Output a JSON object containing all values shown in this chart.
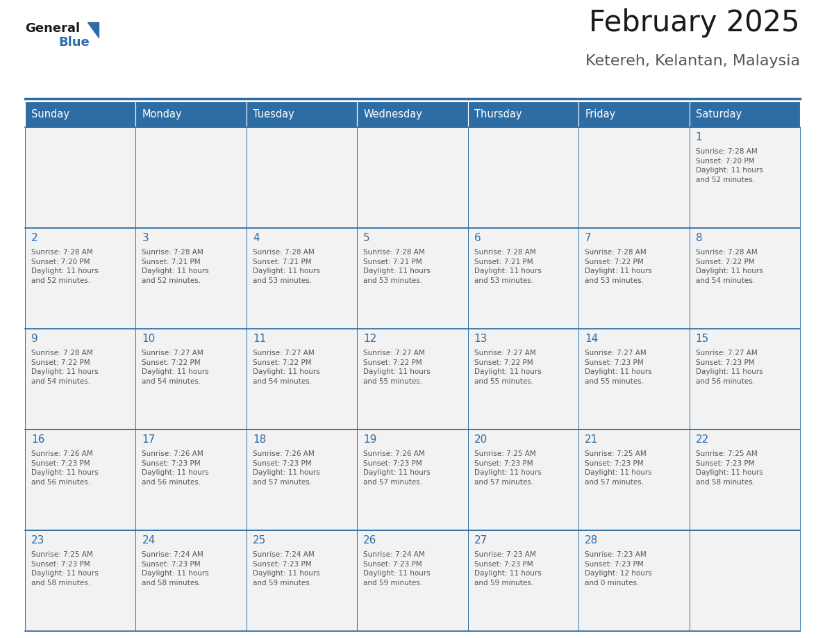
{
  "title": "February 2025",
  "subtitle": "Ketereh, Kelantan, Malaysia",
  "header_bg": "#2E6DA4",
  "header_text_color": "#FFFFFF",
  "cell_bg": "#F2F2F2",
  "day_number_color": "#2E6DA4",
  "info_text_color": "#555555",
  "border_color": "#2E6DA4",
  "days_of_week": [
    "Sunday",
    "Monday",
    "Tuesday",
    "Wednesday",
    "Thursday",
    "Friday",
    "Saturday"
  ],
  "weeks": [
    [
      {
        "day": null,
        "info": null
      },
      {
        "day": null,
        "info": null
      },
      {
        "day": null,
        "info": null
      },
      {
        "day": null,
        "info": null
      },
      {
        "day": null,
        "info": null
      },
      {
        "day": null,
        "info": null
      },
      {
        "day": 1,
        "info": "Sunrise: 7:28 AM\nSunset: 7:20 PM\nDaylight: 11 hours\nand 52 minutes."
      }
    ],
    [
      {
        "day": 2,
        "info": "Sunrise: 7:28 AM\nSunset: 7:20 PM\nDaylight: 11 hours\nand 52 minutes."
      },
      {
        "day": 3,
        "info": "Sunrise: 7:28 AM\nSunset: 7:21 PM\nDaylight: 11 hours\nand 52 minutes."
      },
      {
        "day": 4,
        "info": "Sunrise: 7:28 AM\nSunset: 7:21 PM\nDaylight: 11 hours\nand 53 minutes."
      },
      {
        "day": 5,
        "info": "Sunrise: 7:28 AM\nSunset: 7:21 PM\nDaylight: 11 hours\nand 53 minutes."
      },
      {
        "day": 6,
        "info": "Sunrise: 7:28 AM\nSunset: 7:21 PM\nDaylight: 11 hours\nand 53 minutes."
      },
      {
        "day": 7,
        "info": "Sunrise: 7:28 AM\nSunset: 7:22 PM\nDaylight: 11 hours\nand 53 minutes."
      },
      {
        "day": 8,
        "info": "Sunrise: 7:28 AM\nSunset: 7:22 PM\nDaylight: 11 hours\nand 54 minutes."
      }
    ],
    [
      {
        "day": 9,
        "info": "Sunrise: 7:28 AM\nSunset: 7:22 PM\nDaylight: 11 hours\nand 54 minutes."
      },
      {
        "day": 10,
        "info": "Sunrise: 7:27 AM\nSunset: 7:22 PM\nDaylight: 11 hours\nand 54 minutes."
      },
      {
        "day": 11,
        "info": "Sunrise: 7:27 AM\nSunset: 7:22 PM\nDaylight: 11 hours\nand 54 minutes."
      },
      {
        "day": 12,
        "info": "Sunrise: 7:27 AM\nSunset: 7:22 PM\nDaylight: 11 hours\nand 55 minutes."
      },
      {
        "day": 13,
        "info": "Sunrise: 7:27 AM\nSunset: 7:22 PM\nDaylight: 11 hours\nand 55 minutes."
      },
      {
        "day": 14,
        "info": "Sunrise: 7:27 AM\nSunset: 7:23 PM\nDaylight: 11 hours\nand 55 minutes."
      },
      {
        "day": 15,
        "info": "Sunrise: 7:27 AM\nSunset: 7:23 PM\nDaylight: 11 hours\nand 56 minutes."
      }
    ],
    [
      {
        "day": 16,
        "info": "Sunrise: 7:26 AM\nSunset: 7:23 PM\nDaylight: 11 hours\nand 56 minutes."
      },
      {
        "day": 17,
        "info": "Sunrise: 7:26 AM\nSunset: 7:23 PM\nDaylight: 11 hours\nand 56 minutes."
      },
      {
        "day": 18,
        "info": "Sunrise: 7:26 AM\nSunset: 7:23 PM\nDaylight: 11 hours\nand 57 minutes."
      },
      {
        "day": 19,
        "info": "Sunrise: 7:26 AM\nSunset: 7:23 PM\nDaylight: 11 hours\nand 57 minutes."
      },
      {
        "day": 20,
        "info": "Sunrise: 7:25 AM\nSunset: 7:23 PM\nDaylight: 11 hours\nand 57 minutes."
      },
      {
        "day": 21,
        "info": "Sunrise: 7:25 AM\nSunset: 7:23 PM\nDaylight: 11 hours\nand 57 minutes."
      },
      {
        "day": 22,
        "info": "Sunrise: 7:25 AM\nSunset: 7:23 PM\nDaylight: 11 hours\nand 58 minutes."
      }
    ],
    [
      {
        "day": 23,
        "info": "Sunrise: 7:25 AM\nSunset: 7:23 PM\nDaylight: 11 hours\nand 58 minutes."
      },
      {
        "day": 24,
        "info": "Sunrise: 7:24 AM\nSunset: 7:23 PM\nDaylight: 11 hours\nand 58 minutes."
      },
      {
        "day": 25,
        "info": "Sunrise: 7:24 AM\nSunset: 7:23 PM\nDaylight: 11 hours\nand 59 minutes."
      },
      {
        "day": 26,
        "info": "Sunrise: 7:24 AM\nSunset: 7:23 PM\nDaylight: 11 hours\nand 59 minutes."
      },
      {
        "day": 27,
        "info": "Sunrise: 7:23 AM\nSunset: 7:23 PM\nDaylight: 11 hours\nand 59 minutes."
      },
      {
        "day": 28,
        "info": "Sunrise: 7:23 AM\nSunset: 7:23 PM\nDaylight: 12 hours\nand 0 minutes."
      },
      {
        "day": null,
        "info": null
      }
    ]
  ],
  "fig_width": 11.88,
  "fig_height": 9.18
}
